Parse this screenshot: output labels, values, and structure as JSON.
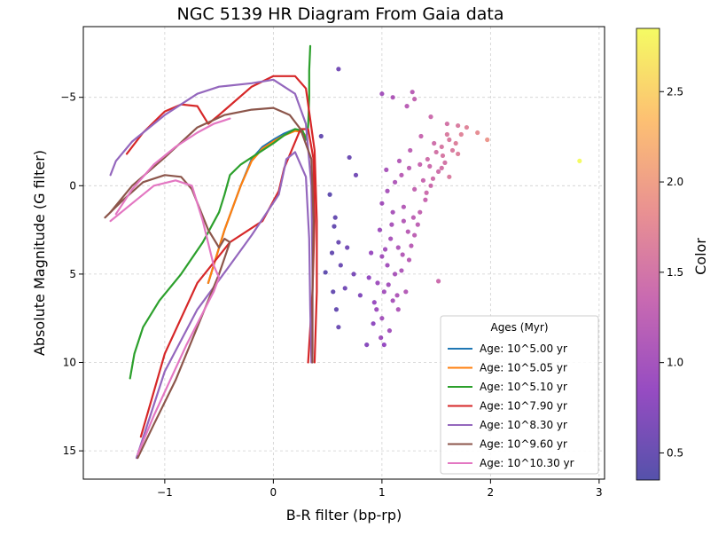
{
  "chart_data": {
    "type": "scatter",
    "title": "NGC 5139 HR Diagram From Gaia data",
    "xlabel": "B-R filter (bp-rp)",
    "ylabel": "Absolute Magnitude (G filter)",
    "xlim": [
      -1.75,
      3.05
    ],
    "ylim": [
      16.6,
      -9.0
    ],
    "y_inverted": true,
    "xticks": [
      -1,
      0,
      1,
      2,
      3
    ],
    "yticks": [
      -5,
      0,
      5,
      10,
      15
    ],
    "grid": true,
    "colorbar": {
      "label": "Color",
      "range": [
        0.35,
        2.85
      ],
      "ticks": [
        0.5,
        1.0,
        1.5,
        2.0,
        2.5
      ],
      "colormap": "plasma",
      "stops": [
        "#0d0887",
        "#6a00a8",
        "#b12a90",
        "#e16462",
        "#fca636",
        "#f0f921"
      ],
      "alpha": 0.7
    },
    "legend": {
      "title": "Ages (Myr)",
      "location": "lower-right",
      "entries": [
        {
          "label": "Age: 10^5.00 yr",
          "color": "#1f77b4"
        },
        {
          "label": "Age: 10^5.05 yr",
          "color": "#ff7f0e"
        },
        {
          "label": "Age: 10^5.10 yr",
          "color": "#2ca02c"
        },
        {
          "label": "Age: 10^7.90 yr",
          "color": "#d62728"
        },
        {
          "label": "Age: 10^8.30 yr",
          "color": "#9467bd"
        },
        {
          "label": "Age: 10^9.60 yr",
          "color": "#8c564b"
        },
        {
          "label": "Age: 10^10.30 yr",
          "color": "#e377c2"
        }
      ]
    },
    "series": [
      {
        "name": "Age: 10^5.00 yr",
        "color": "#1f77b4",
        "points": [
          [
            -0.6,
            5.5
          ],
          [
            -0.45,
            2.5
          ],
          [
            -0.3,
            0.0
          ],
          [
            -0.2,
            -1.5
          ],
          [
            -0.1,
            -2.2
          ],
          [
            0.0,
            -2.6
          ],
          [
            0.1,
            -2.95
          ],
          [
            0.2,
            -3.2
          ],
          [
            0.26,
            -3.1
          ],
          [
            0.3,
            -2.8
          ],
          [
            0.3,
            -2.6
          ]
        ]
      },
      {
        "name": "Age: 10^5.05 yr",
        "color": "#ff7f0e",
        "points": [
          [
            -0.6,
            5.5
          ],
          [
            -0.45,
            2.5
          ],
          [
            -0.3,
            0.0
          ],
          [
            -0.2,
            -1.4
          ],
          [
            -0.1,
            -2.1
          ],
          [
            0.0,
            -2.5
          ],
          [
            0.1,
            -2.85
          ],
          [
            0.2,
            -3.1
          ],
          [
            0.26,
            -3.05
          ],
          [
            0.3,
            -2.8
          ]
        ]
      },
      {
        "name": "Age: 10^5.10 yr",
        "color": "#2ca02c",
        "points": [
          [
            -1.32,
            10.9
          ],
          [
            -1.28,
            9.5
          ],
          [
            -1.2,
            8.0
          ],
          [
            -1.05,
            6.5
          ],
          [
            -0.85,
            5.0
          ],
          [
            -0.65,
            3.2
          ],
          [
            -0.5,
            1.5
          ],
          [
            -0.45,
            0.5
          ],
          [
            -0.4,
            -0.6
          ],
          [
            -0.3,
            -1.2
          ],
          [
            -0.15,
            -1.8
          ],
          [
            0.0,
            -2.4
          ],
          [
            0.1,
            -2.85
          ],
          [
            0.2,
            -3.2
          ],
          [
            0.27,
            -3.1
          ],
          [
            0.3,
            -2.6
          ],
          [
            0.32,
            -3.3
          ],
          [
            0.33,
            -5.0
          ],
          [
            0.33,
            -6.5
          ],
          [
            0.34,
            -7.9
          ]
        ]
      },
      {
        "name": "Age: 10^7.90 yr",
        "color": "#d62728",
        "points": [
          [
            -1.22,
            14.2
          ],
          [
            -1.0,
            9.5
          ],
          [
            -0.7,
            5.5
          ],
          [
            -0.4,
            3.2
          ],
          [
            -0.1,
            2.0
          ],
          [
            0.05,
            0.3
          ],
          [
            0.1,
            -1.0
          ],
          [
            0.25,
            -3.2
          ],
          [
            0.32,
            -3.2
          ],
          [
            0.37,
            -1.5
          ],
          [
            0.38,
            2.0
          ],
          [
            0.36,
            6.0
          ],
          [
            0.32,
            10.0
          ]
        ],
        "path2": [
          [
            -1.35,
            -1.8
          ],
          [
            -1.2,
            -3.0
          ],
          [
            -1.0,
            -4.2
          ],
          [
            -0.85,
            -4.6
          ],
          [
            -0.7,
            -4.5
          ],
          [
            -0.6,
            -3.5
          ],
          [
            -0.5,
            -4.0
          ],
          [
            -0.2,
            -5.6
          ],
          [
            0.0,
            -6.2
          ],
          [
            0.2,
            -6.2
          ],
          [
            0.3,
            -5.5
          ],
          [
            0.38,
            -2.0
          ],
          [
            0.4,
            2.0
          ],
          [
            0.4,
            6.0
          ],
          [
            0.38,
            10.0
          ]
        ]
      },
      {
        "name": "Age: 10^8.30 yr",
        "color": "#9467bd",
        "points": [
          [
            -1.26,
            15.4
          ],
          [
            -1.0,
            10.5
          ],
          [
            -0.7,
            7.0
          ],
          [
            -0.4,
            4.5
          ],
          [
            -0.2,
            2.8
          ],
          [
            0.05,
            0.5
          ],
          [
            0.12,
            -1.5
          ],
          [
            0.2,
            -1.9
          ],
          [
            0.3,
            -0.5
          ],
          [
            0.33,
            3.0
          ],
          [
            0.34,
            7.0
          ],
          [
            0.35,
            10.0
          ]
        ],
        "path2": [
          [
            -1.5,
            -0.6
          ],
          [
            -1.45,
            -1.4
          ],
          [
            -1.3,
            -2.5
          ],
          [
            -1.0,
            -4.0
          ],
          [
            -0.7,
            -5.2
          ],
          [
            -0.5,
            -5.6
          ],
          [
            -0.2,
            -5.8
          ],
          [
            0.0,
            -6.0
          ],
          [
            0.2,
            -5.2
          ],
          [
            0.3,
            -3.5
          ],
          [
            0.35,
            0.0
          ],
          [
            0.36,
            5.0
          ],
          [
            0.36,
            9.5
          ]
        ]
      },
      {
        "name": "Age: 10^9.60 yr",
        "color": "#8c564b",
        "points": [
          [
            -1.55,
            1.8
          ],
          [
            -1.4,
            0.9
          ],
          [
            -1.2,
            -0.2
          ],
          [
            -1.0,
            -0.6
          ],
          [
            -0.85,
            -0.5
          ],
          [
            -0.75,
            0.2
          ],
          [
            -0.6,
            2.5
          ],
          [
            -0.5,
            3.5
          ],
          [
            -0.45,
            3.0
          ],
          [
            -0.4,
            3.2
          ],
          [
            -0.5,
            5.0
          ],
          [
            -0.7,
            8.0
          ],
          [
            -0.9,
            11.0
          ],
          [
            -1.1,
            13.5
          ],
          [
            -1.25,
            15.4
          ]
        ],
        "path2": [
          [
            -1.5,
            1.5
          ],
          [
            -1.3,
            0.0
          ],
          [
            -1.0,
            -1.6
          ],
          [
            -0.7,
            -3.3
          ],
          [
            -0.45,
            -4.0
          ],
          [
            -0.2,
            -4.3
          ],
          [
            0.0,
            -4.4
          ],
          [
            0.15,
            -4.0
          ],
          [
            0.25,
            -3.2
          ],
          [
            0.35,
            -1.5
          ],
          [
            0.37,
            2.0
          ],
          [
            0.36,
            6.0
          ],
          [
            0.36,
            10.0
          ]
        ]
      },
      {
        "name": "Age: 10^10.30 yr",
        "color": "#e377c2",
        "points": [
          [
            -1.5,
            2.0
          ],
          [
            -1.3,
            1.0
          ],
          [
            -1.1,
            0.0
          ],
          [
            -0.9,
            -0.3
          ],
          [
            -0.75,
            0.0
          ],
          [
            -0.65,
            2.0
          ],
          [
            -0.55,
            4.5
          ],
          [
            -0.5,
            5.2
          ],
          [
            -0.55,
            6.0
          ],
          [
            -0.8,
            9.0
          ],
          [
            -1.1,
            13.0
          ],
          [
            -1.25,
            15.2
          ]
        ],
        "path2": [
          [
            -1.45,
            1.6
          ],
          [
            -1.3,
            0.2
          ],
          [
            -1.1,
            -1.2
          ],
          [
            -0.9,
            -2.2
          ],
          [
            -0.7,
            -3.0
          ],
          [
            -0.55,
            -3.5
          ],
          [
            -0.4,
            -3.8
          ]
        ]
      }
    ],
    "scatter_points": [
      {
        "x": 0.6,
        "y": -6.6,
        "c": 0.6
      },
      {
        "x": 0.44,
        "y": -2.8,
        "c": 0.5
      },
      {
        "x": 0.7,
        "y": -1.6,
        "c": 0.55
      },
      {
        "x": 0.76,
        "y": -0.6,
        "c": 0.6
      },
      {
        "x": 0.52,
        "y": 0.5,
        "c": 0.45
      },
      {
        "x": 0.57,
        "y": 1.8,
        "c": 0.5
      },
      {
        "x": 0.56,
        "y": 2.3,
        "c": 0.5
      },
      {
        "x": 0.6,
        "y": 3.2,
        "c": 0.55
      },
      {
        "x": 0.54,
        "y": 3.8,
        "c": 0.5
      },
      {
        "x": 0.62,
        "y": 4.5,
        "c": 0.55
      },
      {
        "x": 0.48,
        "y": 4.9,
        "c": 0.45
      },
      {
        "x": 0.55,
        "y": 6.0,
        "c": 0.5
      },
      {
        "x": 0.58,
        "y": 7.0,
        "c": 0.5
      },
      {
        "x": 0.6,
        "y": 8.0,
        "c": 0.55
      },
      {
        "x": 0.66,
        "y": 5.8,
        "c": 0.6
      },
      {
        "x": 0.68,
        "y": 3.5,
        "c": 0.6
      },
      {
        "x": 0.74,
        "y": 5.0,
        "c": 0.65
      },
      {
        "x": 0.8,
        "y": 6.2,
        "c": 0.7
      },
      {
        "x": 0.86,
        "y": 9.0,
        "c": 0.75
      },
      {
        "x": 0.92,
        "y": 7.8,
        "c": 0.8
      },
      {
        "x": 1.02,
        "y": 9.0,
        "c": 0.85
      },
      {
        "x": 1.0,
        "y": -5.2,
        "c": 1.0
      },
      {
        "x": 1.1,
        "y": -5.0,
        "c": 1.1
      },
      {
        "x": 1.28,
        "y": -5.3,
        "c": 1.2
      },
      {
        "x": 1.3,
        "y": -4.9,
        "c": 1.3
      },
      {
        "x": 1.23,
        "y": -4.5,
        "c": 1.2
      },
      {
        "x": 1.45,
        "y": -3.9,
        "c": 1.4
      },
      {
        "x": 1.6,
        "y": -3.5,
        "c": 1.5
      },
      {
        "x": 1.7,
        "y": -3.4,
        "c": 1.6
      },
      {
        "x": 1.78,
        "y": -3.3,
        "c": 1.7
      },
      {
        "x": 1.88,
        "y": -3.0,
        "c": 1.8
      },
      {
        "x": 1.97,
        "y": -2.6,
        "c": 1.9
      },
      {
        "x": 2.82,
        "y": -1.4,
        "c": 2.85
      },
      {
        "x": 1.62,
        "y": -2.6,
        "c": 1.6
      },
      {
        "x": 1.55,
        "y": -2.2,
        "c": 1.55
      },
      {
        "x": 1.5,
        "y": -1.9,
        "c": 1.5
      },
      {
        "x": 1.42,
        "y": -1.5,
        "c": 1.45
      },
      {
        "x": 1.35,
        "y": -1.2,
        "c": 1.35
      },
      {
        "x": 1.25,
        "y": -1.0,
        "c": 1.25
      },
      {
        "x": 1.18,
        "y": -0.6,
        "c": 1.2
      },
      {
        "x": 1.12,
        "y": -0.2,
        "c": 1.1
      },
      {
        "x": 1.05,
        "y": 0.3,
        "c": 1.05
      },
      {
        "x": 1.3,
        "y": 0.2,
        "c": 1.3
      },
      {
        "x": 1.62,
        "y": -0.5,
        "c": 1.6
      },
      {
        "x": 1.7,
        "y": -1.8,
        "c": 1.65
      },
      {
        "x": 1.0,
        "y": 1.0,
        "c": 1.0
      },
      {
        "x": 1.1,
        "y": 1.5,
        "c": 1.05
      },
      {
        "x": 1.2,
        "y": 2.0,
        "c": 1.15
      },
      {
        "x": 0.98,
        "y": 2.5,
        "c": 0.95
      },
      {
        "x": 1.08,
        "y": 3.0,
        "c": 1.05
      },
      {
        "x": 1.15,
        "y": 3.5,
        "c": 1.1
      },
      {
        "x": 1.0,
        "y": 4.0,
        "c": 1.0
      },
      {
        "x": 1.05,
        "y": 4.5,
        "c": 1.0
      },
      {
        "x": 1.12,
        "y": 5.0,
        "c": 1.05
      },
      {
        "x": 0.96,
        "y": 5.5,
        "c": 0.95
      },
      {
        "x": 1.02,
        "y": 6.0,
        "c": 1.0
      },
      {
        "x": 1.1,
        "y": 6.5,
        "c": 1.05
      },
      {
        "x": 0.95,
        "y": 7.0,
        "c": 0.95
      },
      {
        "x": 1.0,
        "y": 7.5,
        "c": 1.0
      },
      {
        "x": 1.15,
        "y": 7.0,
        "c": 1.1
      },
      {
        "x": 1.22,
        "y": 6.0,
        "c": 1.15
      },
      {
        "x": 1.25,
        "y": 4.2,
        "c": 1.2
      },
      {
        "x": 1.3,
        "y": 2.8,
        "c": 1.25
      },
      {
        "x": 1.35,
        "y": 1.5,
        "c": 1.3
      },
      {
        "x": 1.4,
        "y": 0.8,
        "c": 1.35
      },
      {
        "x": 1.45,
        "y": 0.0,
        "c": 1.4
      },
      {
        "x": 1.52,
        "y": -0.8,
        "c": 1.45
      },
      {
        "x": 1.58,
        "y": -1.3,
        "c": 1.5
      },
      {
        "x": 1.65,
        "y": -2.0,
        "c": 1.6
      },
      {
        "x": 1.68,
        "y": -2.4,
        "c": 1.65
      },
      {
        "x": 1.52,
        "y": 5.4,
        "c": 1.4
      },
      {
        "x": 0.9,
        "y": 3.8,
        "c": 0.9
      },
      {
        "x": 0.88,
        "y": 5.2,
        "c": 0.85
      },
      {
        "x": 0.93,
        "y": 6.6,
        "c": 0.9
      },
      {
        "x": 1.07,
        "y": 8.2,
        "c": 1.0
      },
      {
        "x": 1.18,
        "y": 4.8,
        "c": 1.1
      },
      {
        "x": 1.27,
        "y": 3.4,
        "c": 1.2
      },
      {
        "x": 1.33,
        "y": 2.2,
        "c": 1.25
      },
      {
        "x": 1.2,
        "y": 1.2,
        "c": 1.15
      },
      {
        "x": 1.38,
        "y": -0.3,
        "c": 1.35
      },
      {
        "x": 1.44,
        "y": -1.1,
        "c": 1.4
      },
      {
        "x": 1.56,
        "y": -1.7,
        "c": 1.55
      },
      {
        "x": 1.48,
        "y": -2.4,
        "c": 1.45
      },
      {
        "x": 1.36,
        "y": -2.8,
        "c": 1.35
      },
      {
        "x": 1.26,
        "y": -2.0,
        "c": 1.25
      },
      {
        "x": 1.16,
        "y": -1.4,
        "c": 1.15
      },
      {
        "x": 1.04,
        "y": -0.9,
        "c": 1.05
      },
      {
        "x": 1.09,
        "y": 2.2,
        "c": 1.05
      },
      {
        "x": 1.03,
        "y": 3.6,
        "c": 1.0
      },
      {
        "x": 1.14,
        "y": 6.2,
        "c": 1.1
      },
      {
        "x": 0.99,
        "y": 8.6,
        "c": 0.95
      },
      {
        "x": 1.06,
        "y": 5.6,
        "c": 1.0
      },
      {
        "x": 1.19,
        "y": 3.9,
        "c": 1.15
      },
      {
        "x": 1.24,
        "y": 2.6,
        "c": 1.2
      },
      {
        "x": 1.29,
        "y": 1.8,
        "c": 1.25
      },
      {
        "x": 1.41,
        "y": 0.4,
        "c": 1.4
      },
      {
        "x": 1.47,
        "y": -0.4,
        "c": 1.45
      },
      {
        "x": 1.55,
        "y": -1.0,
        "c": 1.5
      },
      {
        "x": 1.6,
        "y": -2.9,
        "c": 1.6
      },
      {
        "x": 1.73,
        "y": -2.9,
        "c": 1.7
      }
    ]
  }
}
